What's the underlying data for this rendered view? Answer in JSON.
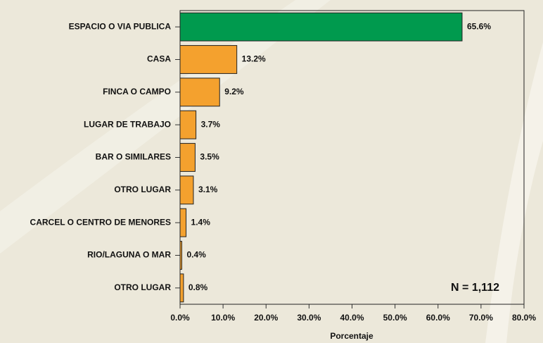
{
  "chart_data": {
    "type": "bar",
    "orientation": "horizontal",
    "categories": [
      "ESPACIO O VIA PUBLICA",
      "CASA",
      "FINCA O CAMPO",
      "LUGAR DE TRABAJO",
      "BAR O SIMILARES",
      "OTRO LUGAR",
      "CARCEL O CENTRO DE MENORES",
      "RIO/LAGUNA O MAR",
      "OTRO LUGAR"
    ],
    "values": [
      65.6,
      13.2,
      9.2,
      3.7,
      3.5,
      3.1,
      1.4,
      0.4,
      0.8
    ],
    "value_labels": [
      "65.6%",
      "13.2%",
      "9.2%",
      "3.7%",
      "3.5%",
      "3.1%",
      "1.4%",
      "0.4%",
      "0.8%"
    ],
    "colors": [
      "#009a4e",
      "#f4a12e",
      "#f4a12e",
      "#f4a12e",
      "#f4a12e",
      "#f4a12e",
      "#f4a12e",
      "#f4a12e",
      "#f4a12e"
    ],
    "xlabel": "Porcentaje",
    "annotation": "N = 1,112",
    "xlim": [
      0,
      80
    ],
    "xticks": [
      {
        "value": 0,
        "label": "0.0%"
      },
      {
        "value": 10,
        "label": "10.0%"
      },
      {
        "value": 20,
        "label": "20.0%"
      },
      {
        "value": 30,
        "label": "30.0%"
      },
      {
        "value": 40,
        "label": "40.0%"
      },
      {
        "value": 50,
        "label": "50.0%"
      },
      {
        "value": 60,
        "label": "60.0%"
      },
      {
        "value": 70,
        "label": "70.0%"
      },
      {
        "value": 80,
        "label": "80.0%"
      }
    ]
  }
}
